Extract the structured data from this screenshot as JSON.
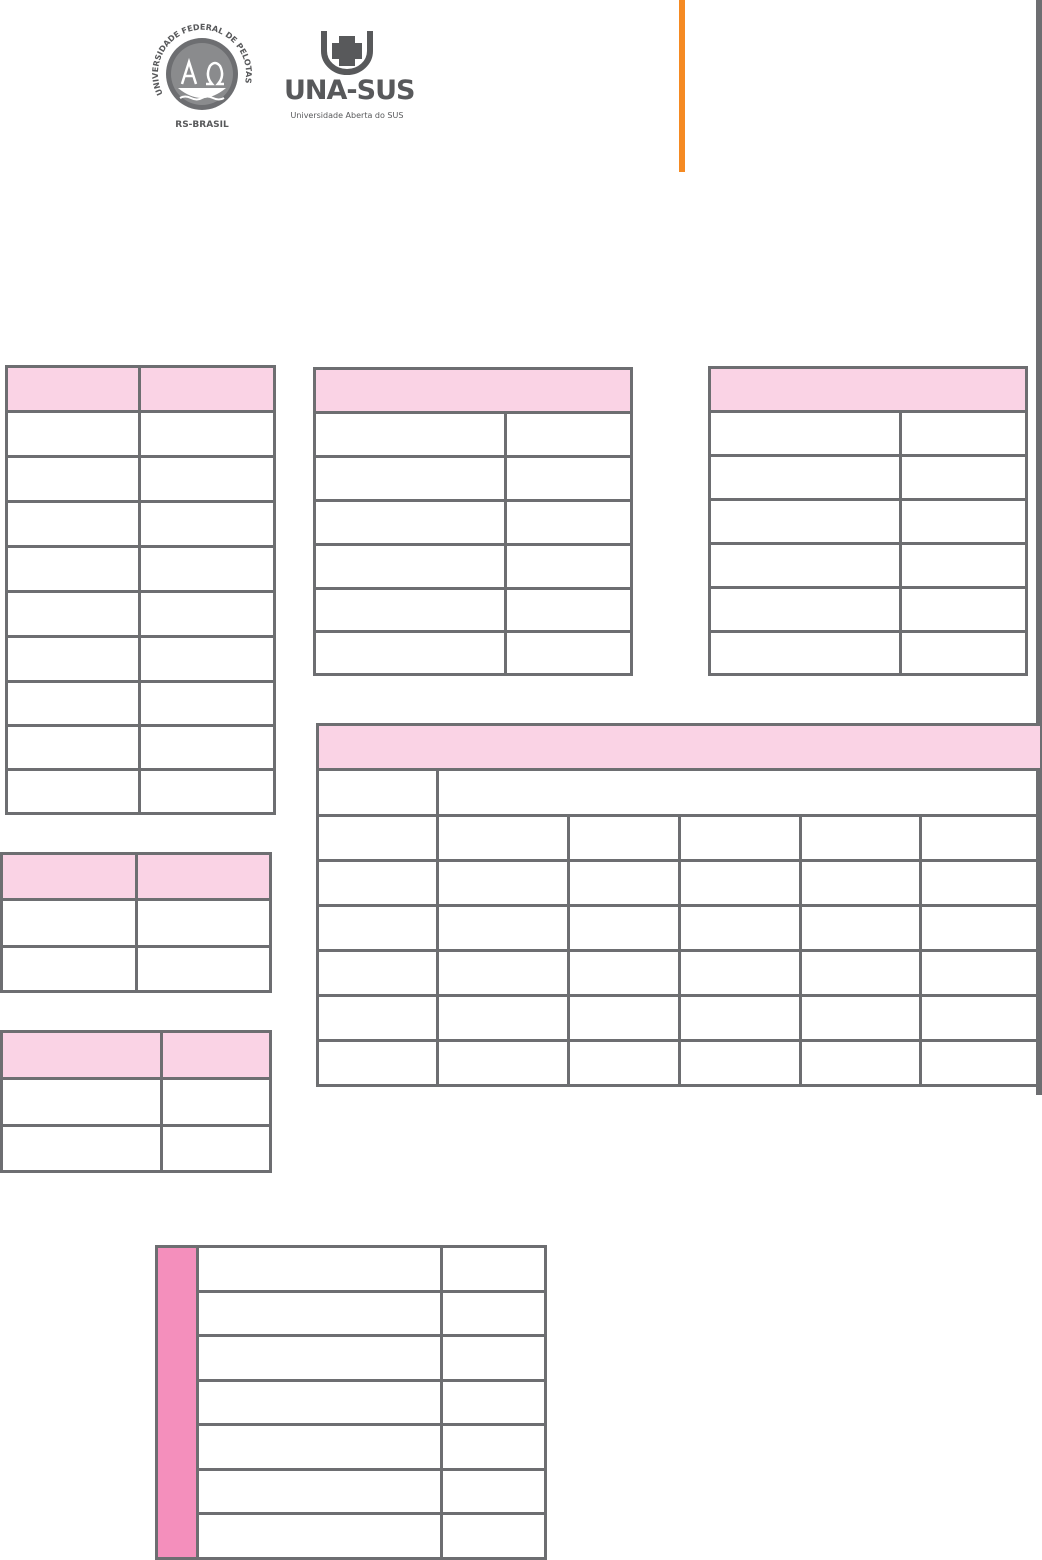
{
  "header": {
    "logos": [
      {
        "name": "ufpel-seal",
        "text": "UNIVERSIDADE FEDERAL DE PELOTAS",
        "subtext": "RS-BRASIL"
      },
      {
        "name": "una-sus",
        "text": "UNA-SUS",
        "subtext": "Universidade Aberta do SUS"
      }
    ]
  },
  "colors": {
    "table_border": "#6d6e71",
    "table_header_fill": "#fad3e5",
    "side_column_fill": "#f48fbc",
    "accent_orange": "#f58a22",
    "logo_gray": "#58595b"
  },
  "tables": [
    {
      "name": "table-1",
      "header_cells": 2,
      "body_rows": 9,
      "columns": 2
    },
    {
      "name": "table-2",
      "header_cells": 1,
      "body_rows": 6,
      "columns": 2
    },
    {
      "name": "table-3",
      "header_cells": 1,
      "body_rows": 6,
      "columns": 2
    },
    {
      "name": "table-4",
      "header_cells": 1,
      "body_rows": 7,
      "columns": 6
    },
    {
      "name": "table-5",
      "header_cells": 2,
      "body_rows": 2,
      "columns": 2
    },
    {
      "name": "table-6",
      "header_cells": 2,
      "body_rows": 2,
      "columns": 2
    },
    {
      "name": "table-7",
      "header_cells": 0,
      "body_rows": 7,
      "columns": 2
    }
  ]
}
